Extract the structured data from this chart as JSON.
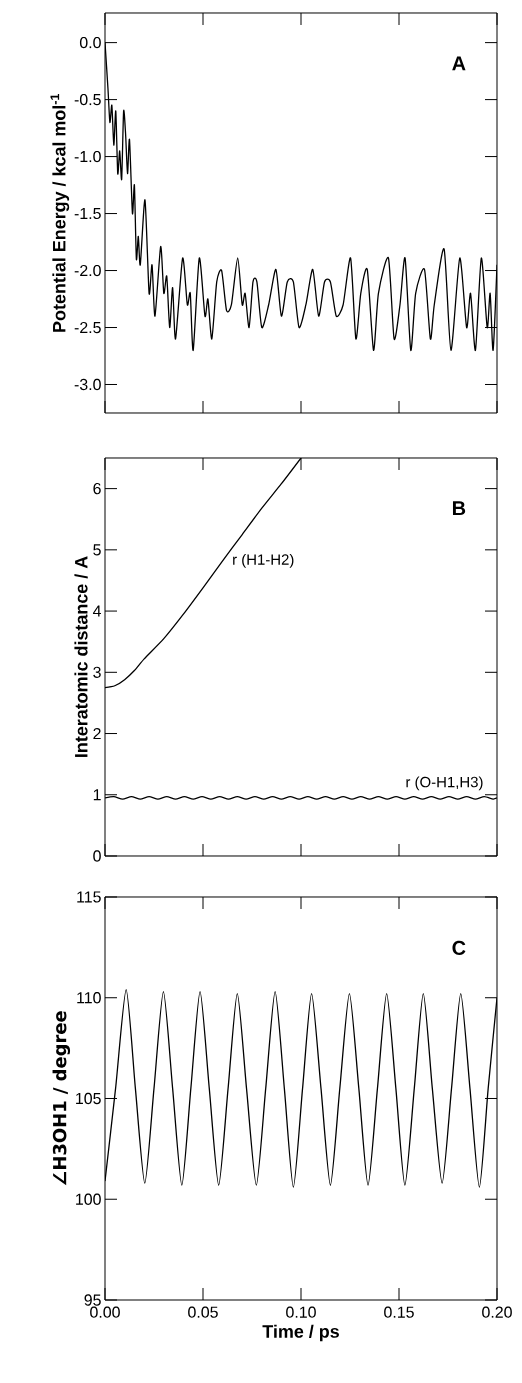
{
  "chart_data": [
    {
      "type": "line",
      "xlim": [
        0,
        0.2
      ],
      "ylim": [
        -3.25,
        0.26
      ],
      "tick_labels": "y",
      "xticks": [
        0,
        0.05,
        0.1,
        0.15,
        0.2
      ],
      "yticks": [
        {
          "value": 0,
          "label": "0.0"
        },
        {
          "value": -0.5,
          "label": "-0.5"
        },
        {
          "value": -1,
          "label": "-1.0"
        },
        {
          "value": -1.5,
          "label": "-1.5"
        },
        {
          "value": -2,
          "label": "-2.0"
        },
        {
          "value": -2.5,
          "label": "-2.5"
        },
        {
          "value": -3,
          "label": "-3.0"
        }
      ],
      "ylabel": "Potential Energy / kcal mol$^{-1}$",
      "annotations": [
        "A"
      ],
      "series": [
        {
          "color": "#000000",
          "x": [
            0,
            0.0015,
            0.0025,
            0.0035,
            0.0045,
            0.0055,
            0.0065,
            0.0075,
            0.0085,
            0.0095,
            0.0105,
            0.0115,
            0.0125,
            0.014,
            0.015,
            0.016,
            0.017,
            0.018,
            0.0204,
            0.0225,
            0.024,
            0.0255,
            0.0284,
            0.03,
            0.0315,
            0.033,
            0.0345,
            0.036,
            0.0396,
            0.042,
            0.0435,
            0.045,
            0.0481,
            0.051,
            0.0525,
            0.0545,
            0.057,
            0.0595,
            0.062,
            0.0645,
            0.0677,
            0.07,
            0.0715,
            0.0735,
            0.0755,
            0.0775,
            0.08,
            0.0835,
            0.0872,
            0.09,
            0.093,
            0.0961,
            0.099,
            0.1025,
            0.106,
            0.109,
            0.112,
            0.115,
            0.118,
            0.1215,
            0.1253,
            0.128,
            0.1305,
            0.1338,
            0.137,
            0.1395,
            0.1446,
            0.1475,
            0.1505,
            0.1531,
            0.156,
            0.1585,
            0.163,
            0.166,
            0.168,
            0.173,
            0.1765,
            0.181,
            0.1845,
            0.1865,
            0.189,
            0.192,
            0.195,
            0.1965,
            0.198,
            0.2
          ],
          "values": [
            0,
            -0.4,
            -0.7,
            -0.55,
            -0.9,
            -0.6,
            -1.15,
            -0.95,
            -1.2,
            -0.6,
            -0.8,
            -1.15,
            -0.85,
            -1.5,
            -1.25,
            -1.9,
            -1.7,
            -1.95,
            -1.38,
            -2.2,
            -1.95,
            -2.4,
            -1.79,
            -2.2,
            -2.05,
            -2.5,
            -2.15,
            -2.6,
            -1.89,
            -2.3,
            -2.2,
            -2.7,
            -1.89,
            -2.4,
            -2.25,
            -2.6,
            -2.1,
            -2.0,
            -2.35,
            -2.3,
            -1.89,
            -2.3,
            -2.2,
            -2.5,
            -2.1,
            -2.1,
            -2.5,
            -2.3,
            -1.99,
            -2.4,
            -2.1,
            -2.1,
            -2.5,
            -2.3,
            -1.99,
            -2.4,
            -2.1,
            -2.1,
            -2.4,
            -2.3,
            -1.89,
            -2.6,
            -2.2,
            -1.99,
            -2.7,
            -2.2,
            -1.89,
            -2.6,
            -2.3,
            -1.89,
            -2.7,
            -2.2,
            -1.99,
            -2.6,
            -2.3,
            -1.81,
            -2.7,
            -1.89,
            -2.5,
            -2.2,
            -2.7,
            -1.89,
            -2.5,
            -2.2,
            -2.7,
            -1.95
          ]
        }
      ]
    },
    {
      "type": "line",
      "xlim": [
        0,
        0.2
      ],
      "ylim": [
        0,
        6.5
      ],
      "tick_labels": "y",
      "xticks": [
        0,
        0.05,
        0.1,
        0.15,
        0.2
      ],
      "yticks": [
        0,
        1,
        2,
        3,
        4,
        5,
        6
      ],
      "ylabel": "Interatomic distance / A",
      "annotations": [
        "B"
      ],
      "series": [
        {
          "name": "r (H1-H2)",
          "color": "#000000",
          "x": [
            0,
            0.005,
            0.01,
            0.015,
            0.02,
            0.03,
            0.04,
            0.05,
            0.06,
            0.07,
            0.08,
            0.09,
            0.1
          ],
          "values": [
            2.75,
            2.78,
            2.88,
            3.03,
            3.22,
            3.55,
            3.95,
            4.38,
            4.82,
            5.25,
            5.68,
            6.08,
            6.5
          ]
        },
        {
          "name": "r (O-H1,H3)",
          "color": "#000000",
          "x": [
            0,
            0.0045,
            0.009,
            0.0135,
            0.018,
            0.0225,
            0.027,
            0.0315,
            0.036,
            0.0405,
            0.045,
            0.0495,
            0.054,
            0.0585,
            0.063,
            0.0675,
            0.072,
            0.0765,
            0.081,
            0.0855,
            0.09,
            0.0945,
            0.099,
            0.1035,
            0.108,
            0.1125,
            0.117,
            0.1215,
            0.126,
            0.1305,
            0.135,
            0.1395,
            0.144,
            0.1485,
            0.153,
            0.1575,
            0.162,
            0.1665,
            0.171,
            0.1755,
            0.18,
            0.1845,
            0.189,
            0.1935,
            0.198,
            0.2
          ],
          "values": [
            0.95,
            0.97,
            0.93,
            0.97,
            0.93,
            0.97,
            0.93,
            0.97,
            0.93,
            0.97,
            0.93,
            0.97,
            0.93,
            0.97,
            0.93,
            0.97,
            0.93,
            0.97,
            0.93,
            0.97,
            0.93,
            0.97,
            0.93,
            0.97,
            0.93,
            0.97,
            0.93,
            0.97,
            0.93,
            0.97,
            0.93,
            0.97,
            0.93,
            0.97,
            0.93,
            0.97,
            0.93,
            0.97,
            0.93,
            0.97,
            0.93,
            0.97,
            0.93,
            0.97,
            0.93,
            0.95
          ]
        }
      ]
    },
    {
      "type": "line",
      "xlim": [
        0,
        0.2
      ],
      "ylim": [
        95,
        115
      ],
      "xticks": [
        {
          "value": 0,
          "label": "0.00"
        },
        {
          "value": 0.05,
          "label": "0.05"
        },
        {
          "value": 0.1,
          "label": "0.10"
        },
        {
          "value": 0.15,
          "label": "0.15"
        },
        {
          "value": 0.2,
          "label": "0.20"
        }
      ],
      "yticks": [
        95,
        100,
        105,
        110,
        115
      ],
      "xlabel": "Time / ps",
      "ylabel": "∠H3OH1 / degree",
      "annotations": [
        "C"
      ],
      "series": [
        {
          "color": "#000000",
          "x": [
            0,
            0.0054,
            0.0108,
            0.0155,
            0.0203,
            0.025,
            0.0298,
            0.0345,
            0.0392,
            0.0438,
            0.0485,
            0.0532,
            0.058,
            0.0628,
            0.0675,
            0.0722,
            0.0772,
            0.082,
            0.0868,
            0.0915,
            0.0961,
            0.1008,
            0.1054,
            0.1102,
            0.115,
            0.1198,
            0.1247,
            0.1295,
            0.1342,
            0.139,
            0.1437,
            0.1484,
            0.153,
            0.1578,
            0.1624,
            0.167,
            0.172,
            0.1768,
            0.1815,
            0.1862,
            0.191,
            0.1955,
            0.2
          ],
          "values": [
            100.9,
            105.5,
            110.4,
            105.5,
            100.8,
            105.5,
            110.3,
            105.5,
            100.7,
            105.5,
            110.3,
            105.5,
            100.7,
            105.5,
            110.2,
            105.5,
            100.7,
            105.5,
            110.3,
            105.5,
            100.6,
            105.5,
            110.2,
            105.5,
            100.7,
            105.5,
            110.2,
            105.5,
            100.7,
            105.5,
            110.2,
            105.5,
            100.7,
            105.5,
            110.2,
            105.5,
            100.8,
            105.5,
            110.2,
            105.5,
            100.6,
            105.5,
            110.0
          ]
        }
      ]
    }
  ]
}
